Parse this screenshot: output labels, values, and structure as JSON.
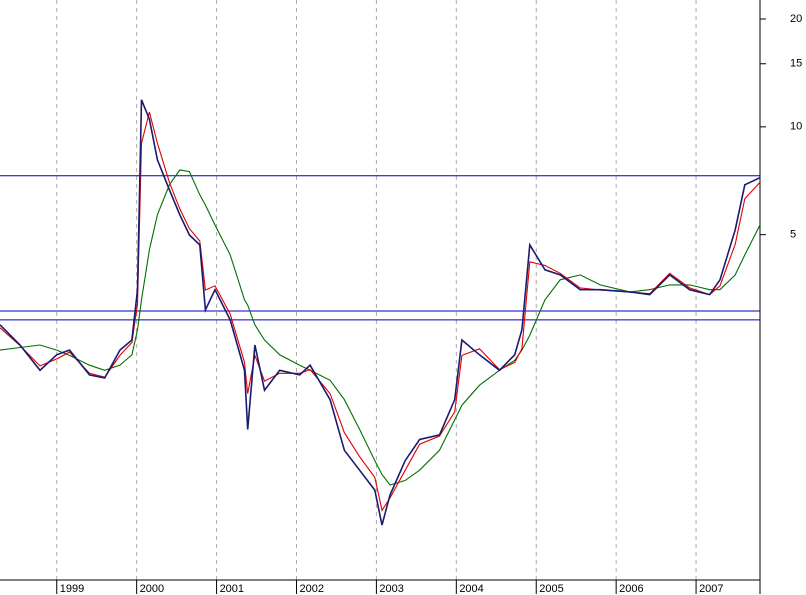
{
  "chart_data": {
    "type": "line",
    "x": [
      1998.29,
      1998.54,
      1998.79,
      1999.0,
      1999.16,
      1999.41,
      1999.6,
      1999.79,
      1999.94,
      2000.01,
      2000.06,
      2000.16,
      2000.26,
      2000.41,
      2000.54,
      2000.66,
      2000.79,
      2000.86,
      2000.98,
      2001.17,
      2001.35,
      2001.39,
      2001.48,
      2001.6,
      2001.79,
      2002.04,
      2002.17,
      2002.42,
      2002.6,
      2002.79,
      2002.98,
      2003.07,
      2003.17,
      2003.36,
      2003.54,
      2003.79,
      2003.98,
      2004.07,
      2004.29,
      2004.54,
      2004.73,
      2004.82,
      2004.92,
      2005.11,
      2005.3,
      2005.55,
      2005.8,
      2006.17,
      2006.42,
      2006.67,
      2006.92,
      2007.17,
      2007.3,
      2007.49,
      2007.61,
      2007.8
    ],
    "series": [
      {
        "color": "#1a1a70",
        "values": [
          2.8,
          2.46,
          2.09,
          2.31,
          2.38,
          2.03,
          1.99,
          2.38,
          2.54,
          3.51,
          11.9,
          10.5,
          8.09,
          6.67,
          5.68,
          4.99,
          4.68,
          3.08,
          3.51,
          2.89,
          2.09,
          1.43,
          2.46,
          1.84,
          2.09,
          2.03,
          2.16,
          1.73,
          1.25,
          1.1,
          0.968,
          0.773,
          0.938,
          1.17,
          1.34,
          1.38,
          1.73,
          2.54,
          2.31,
          2.09,
          2.31,
          2.71,
          4.68,
          3.99,
          3.86,
          3.51,
          3.51,
          3.46,
          3.4,
          3.86,
          3.51,
          3.4,
          3.74,
          5.16,
          6.89,
          7.21
        ]
      },
      {
        "color": "#e00000",
        "values": [
          2.75,
          2.45,
          2.15,
          2.25,
          2.35,
          2.05,
          2.0,
          2.3,
          2.5,
          3.2,
          9.0,
          11.0,
          9.0,
          7.0,
          5.9,
          5.2,
          4.8,
          3.5,
          3.6,
          3.0,
          2.2,
          1.8,
          2.3,
          1.95,
          2.05,
          2.05,
          2.1,
          1.8,
          1.4,
          1.2,
          1.05,
          0.85,
          0.92,
          1.1,
          1.3,
          1.37,
          1.6,
          2.3,
          2.4,
          2.1,
          2.2,
          2.4,
          4.2,
          4.1,
          3.9,
          3.55,
          3.5,
          3.46,
          3.42,
          3.9,
          3.55,
          3.4,
          3.6,
          4.7,
          6.3,
          7.0
        ]
      },
      {
        "color": "#007000",
        "values": [
          2.38,
          2.42,
          2.46,
          2.38,
          2.3,
          2.16,
          2.09,
          2.16,
          2.31,
          2.71,
          3.29,
          4.54,
          5.68,
          6.89,
          7.58,
          7.5,
          6.46,
          6.05,
          5.32,
          4.39,
          3.29,
          3.18,
          2.8,
          2.54,
          2.31,
          2.16,
          2.09,
          1.96,
          1.73,
          1.43,
          1.17,
          1.07,
          1.0,
          1.03,
          1.1,
          1.25,
          1.52,
          1.67,
          1.9,
          2.09,
          2.23,
          2.38,
          2.62,
          3.29,
          3.74,
          3.86,
          3.62,
          3.46,
          3.51,
          3.62,
          3.62,
          3.51,
          3.51,
          3.86,
          4.39,
          5.32
        ]
      }
    ],
    "hlines": [
      7.3,
      3.06,
      2.89
    ],
    "hline_color": "#0000c0",
    "xlim": [
      1998.29,
      2007.8
    ],
    "xticks": [
      1999,
      2000,
      2001,
      2002,
      2003,
      2004,
      2005,
      2006,
      2007
    ],
    "ylim": [
      0.543,
      22.6
    ],
    "yticks": [
      5,
      10,
      15,
      20
    ],
    "log_y": true,
    "grid": true
  }
}
